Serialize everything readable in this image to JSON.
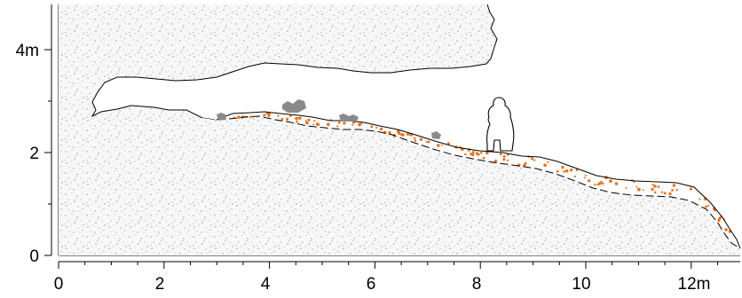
{
  "x_axis": {
    "ticks": [
      "0",
      "2",
      "4",
      "6",
      "8",
      "10",
      "12m"
    ]
  },
  "y_axis": {
    "ticks": [
      "0",
      "2",
      "4m"
    ]
  },
  "colors": {
    "rock_fill": "#f7f7f7",
    "speckle": "#9a9a9a",
    "sediment_dots": "#e8731f",
    "boulder": "#8a8a8a",
    "outline": "#000000"
  },
  "icons": {
    "person": "human-figure-silhouette",
    "boulders": "boulder-shape"
  }
}
